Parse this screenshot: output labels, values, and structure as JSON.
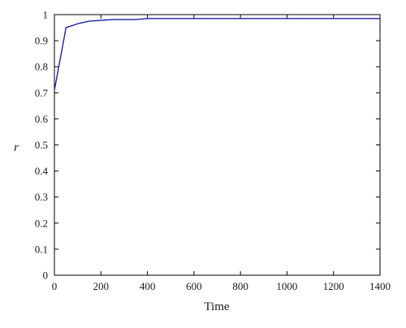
{
  "chart_data": {
    "type": "line",
    "title": "",
    "xlabel": "Time",
    "ylabel": "r",
    "xlim": [
      0,
      1400
    ],
    "ylim": [
      0,
      1
    ],
    "xticks": [
      0,
      200,
      400,
      600,
      800,
      1000,
      1200,
      1400
    ],
    "yticks": [
      0,
      0.1,
      0.2,
      0.3,
      0.4,
      0.5,
      0.6,
      0.7,
      0.8,
      0.9,
      1
    ],
    "xtick_labels": [
      "0",
      "200",
      "400",
      "600",
      "800",
      "1000",
      "1200",
      "1400"
    ],
    "ytick_labels": [
      "0",
      "0.1",
      "0.2",
      "0.3",
      "0.4",
      "0.5",
      "0.6",
      "0.7",
      "0.8",
      "0.9",
      "1"
    ],
    "grid": false,
    "series": [
      {
        "color": "#1f1fa8",
        "x": [
          0,
          50,
          100,
          150,
          200,
          250,
          300,
          350,
          400,
          450,
          500,
          600,
          700,
          800,
          900,
          1000,
          1100,
          1200,
          1300,
          1400
        ],
        "y": [
          0.71,
          0.95,
          0.965,
          0.975,
          0.978,
          0.981,
          0.981,
          0.981,
          0.985,
          0.985,
          0.985,
          0.985,
          0.985,
          0.985,
          0.985,
          0.985,
          0.985,
          0.985,
          0.985,
          0.985
        ]
      }
    ]
  }
}
